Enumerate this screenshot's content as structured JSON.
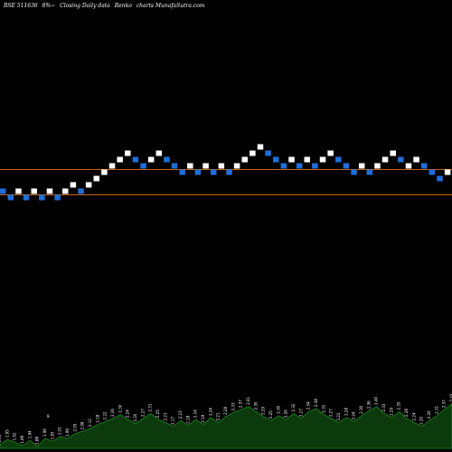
{
  "header": {
    "symbol": "BSE 511636",
    "change": "8%~",
    "subtitle": "Closing Daily data",
    "chart_name": "Renko",
    "source": "charts MunafaSutra.com"
  },
  "colors": {
    "background": "#000000",
    "up_brick": "#ffffff",
    "down_brick": "#1e6fd9",
    "level_line": "#c86414",
    "volume_fill": "#0c3a0c",
    "volume_stroke": "#1a8a1a"
  },
  "chart_data": {
    "type": "renko",
    "title": "BSE 511636 8%~ Closing Daily data Renko charts MunafaSutra.com",
    "bricks": [
      {
        "level": 3,
        "dir": "down"
      },
      {
        "level": 2,
        "dir": "down"
      },
      {
        "level": 3,
        "dir": "up"
      },
      {
        "level": 2,
        "dir": "down"
      },
      {
        "level": 3,
        "dir": "up"
      },
      {
        "level": 2,
        "dir": "down"
      },
      {
        "level": 3,
        "dir": "up"
      },
      {
        "level": 2,
        "dir": "down"
      },
      {
        "level": 3,
        "dir": "up"
      },
      {
        "level": 4,
        "dir": "up"
      },
      {
        "level": 3,
        "dir": "down"
      },
      {
        "level": 4,
        "dir": "up"
      },
      {
        "level": 5,
        "dir": "up"
      },
      {
        "level": 6,
        "dir": "up"
      },
      {
        "level": 7,
        "dir": "up"
      },
      {
        "level": 8,
        "dir": "up"
      },
      {
        "level": 9,
        "dir": "up"
      },
      {
        "level": 8,
        "dir": "down"
      },
      {
        "level": 7,
        "dir": "down"
      },
      {
        "level": 8,
        "dir": "up"
      },
      {
        "level": 9,
        "dir": "up"
      },
      {
        "level": 8,
        "dir": "down"
      },
      {
        "level": 7,
        "dir": "down"
      },
      {
        "level": 6,
        "dir": "down"
      },
      {
        "level": 7,
        "dir": "up"
      },
      {
        "level": 6,
        "dir": "down"
      },
      {
        "level": 7,
        "dir": "up"
      },
      {
        "level": 6,
        "dir": "down"
      },
      {
        "level": 7,
        "dir": "up"
      },
      {
        "level": 6,
        "dir": "down"
      },
      {
        "level": 7,
        "dir": "up"
      },
      {
        "level": 8,
        "dir": "up"
      },
      {
        "level": 9,
        "dir": "up"
      },
      {
        "level": 10,
        "dir": "up"
      },
      {
        "level": 9,
        "dir": "down"
      },
      {
        "level": 8,
        "dir": "down"
      },
      {
        "level": 7,
        "dir": "down"
      },
      {
        "level": 8,
        "dir": "up"
      },
      {
        "level": 7,
        "dir": "down"
      },
      {
        "level": 8,
        "dir": "up"
      },
      {
        "level": 7,
        "dir": "down"
      },
      {
        "level": 8,
        "dir": "up"
      },
      {
        "level": 9,
        "dir": "up"
      },
      {
        "level": 8,
        "dir": "down"
      },
      {
        "level": 7,
        "dir": "down"
      },
      {
        "level": 6,
        "dir": "down"
      },
      {
        "level": 7,
        "dir": "up"
      },
      {
        "level": 6,
        "dir": "down"
      },
      {
        "level": 7,
        "dir": "up"
      },
      {
        "level": 8,
        "dir": "up"
      },
      {
        "level": 9,
        "dir": "up"
      },
      {
        "level": 8,
        "dir": "down"
      },
      {
        "level": 7,
        "dir": "up"
      },
      {
        "level": 8,
        "dir": "up"
      },
      {
        "level": 7,
        "dir": "down"
      },
      {
        "level": 6,
        "dir": "down"
      },
      {
        "level": 5,
        "dir": "down"
      },
      {
        "level": 6,
        "dir": "up"
      },
      {
        "level": 7,
        "dir": "up"
      },
      {
        "level": 8,
        "dir": "up"
      },
      {
        "level": 9,
        "dir": "up"
      }
    ],
    "level_lines": [
      7,
      3
    ],
    "volume_labels": [
      "1.90",
      "1.95",
      "1.92",
      "1.89",
      "1.94",
      "1.88",
      "1.96",
      "1.93",
      "2.01",
      "1.99",
      "2.05",
      "2.08",
      "2.12",
      "2.18",
      "2.22",
      "2.26",
      "2.30",
      "2.24",
      "2.20",
      "2.27",
      "2.31",
      "2.25",
      "2.21",
      "2.17",
      "2.23",
      "2.18",
      "2.24",
      "2.19",
      "2.26",
      "2.21",
      "2.28",
      "2.33",
      "2.37",
      "2.41",
      "2.35",
      "2.29",
      "2.25",
      "2.30",
      "2.26",
      "2.32",
      "2.27",
      "2.34",
      "2.38",
      "2.31",
      "2.27",
      "2.22",
      "2.28",
      "2.24",
      "2.30",
      "2.36",
      "2.40",
      "2.33",
      "2.29",
      "2.35",
      "2.28",
      "2.24",
      "2.20",
      "2.26",
      "2.31",
      "2.37",
      "2.43"
    ],
    "volume_extra_label": "8",
    "volume_values": [
      4,
      9,
      6,
      3,
      8,
      2,
      10,
      7,
      12,
      10,
      15,
      17,
      20,
      24,
      27,
      30,
      34,
      29,
      25,
      30,
      35,
      29,
      26,
      22,
      28,
      23,
      29,
      24,
      31,
      26,
      32,
      36,
      39,
      42,
      37,
      32,
      28,
      33,
      29,
      35,
      30,
      37,
      40,
      34,
      30,
      26,
      31,
      27,
      33,
      38,
      42,
      35,
      31,
      37,
      30,
      26,
      22,
      28,
      33,
      39,
      45
    ]
  }
}
